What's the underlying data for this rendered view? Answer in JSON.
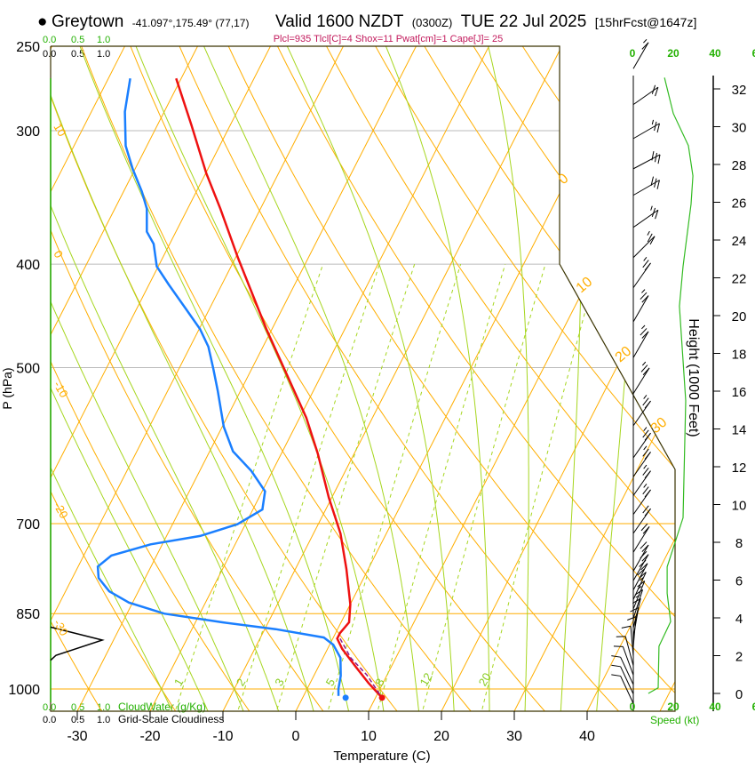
{
  "header": {
    "bullet": "●",
    "location": "Greytown",
    "coords": "-41.097°,175.49° (77,17)",
    "valid": "Valid 1600 NZDT",
    "utc": "(0300Z)",
    "date": "TUE 22 Jul 2025",
    "forecast": "[15hrFcst@1647z]"
  },
  "indices": "Plcl=935 Tlcl[C]=4 Shox=11 Pwat[cm]=1 Cape[J]= 25",
  "cloud": {
    "scale_ticks": [
      "0.0",
      "0.5",
      "1.0"
    ],
    "cloudwater_label": "CloudWater (g/Kg)",
    "cloudiness_label": "Grid-Scale Cloudiness",
    "cloudiness_profile": [
      {
        "p": 875,
        "v": 0.0
      },
      {
        "p": 900,
        "v": 0.97
      },
      {
        "p": 930,
        "v": 0.1
      },
      {
        "p": 940,
        "v": 0.0
      }
    ]
  },
  "chart_data": {
    "type": "line",
    "subtype": "skew-T log-P",
    "xlabel": "Temperature (C)",
    "ylabel": "P (hPa)",
    "x_ticks": [
      -30,
      -20,
      -10,
      0,
      10,
      20,
      30,
      40
    ],
    "y_ticks": [
      250,
      300,
      400,
      500,
      700,
      850,
      1000
    ],
    "xlim": [
      -34,
      45
    ],
    "ylim": [
      1050,
      250
    ],
    "isotherm_labels": [
      "0",
      "10",
      "20",
      "30"
    ],
    "dry_adiabat_labels": [
      "10",
      "0",
      "-10",
      "-20",
      "-30"
    ],
    "mixing_ratio_lines": [
      1,
      2,
      3,
      5,
      8,
      12,
      20
    ],
    "mixing_ratio_labels": [
      "1",
      "2",
      "3",
      "5",
      "8",
      "12",
      "20"
    ],
    "series": [
      {
        "name": "Temperature",
        "color": "#ee1111",
        "points": [
          [
            268,
            -60.7
          ],
          [
            296,
            -55.4
          ],
          [
            329,
            -49.9
          ],
          [
            355,
            -45.5
          ],
          [
            395,
            -39.6
          ],
          [
            460,
            -30.8
          ],
          [
            500,
            -25.7
          ],
          [
            557,
            -19.1
          ],
          [
            602,
            -15.0
          ],
          [
            662,
            -10.4
          ],
          [
            715,
            -6.3
          ],
          [
            772,
            -3.0
          ],
          [
            833,
            0.0
          ],
          [
            866,
            1.1
          ],
          [
            886,
            0.6
          ],
          [
            897,
            0.6
          ],
          [
            917,
            2.0
          ],
          [
            953,
            5.1
          ],
          [
            987,
            8.0
          ],
          [
            1019,
            10.9
          ]
        ]
      },
      {
        "name": "Dewpoint",
        "color": "#1a7fff",
        "points": [
          [
            268,
            -67.0
          ],
          [
            288,
            -65.4
          ],
          [
            310,
            -62.9
          ],
          [
            326,
            -60.3
          ],
          [
            342,
            -57.5
          ],
          [
            355,
            -55.6
          ],
          [
            373,
            -54.0
          ],
          [
            383,
            -52.2
          ],
          [
            402,
            -50.2
          ],
          [
            418,
            -47.3
          ],
          [
            439,
            -43.5
          ],
          [
            460,
            -39.9
          ],
          [
            478,
            -37.5
          ],
          [
            501,
            -35.3
          ],
          [
            526,
            -33.1
          ],
          [
            568,
            -29.8
          ],
          [
            599,
            -26.8
          ],
          [
            625,
            -22.9
          ],
          [
            653,
            -19.6
          ],
          [
            679,
            -18.7
          ],
          [
            701,
            -21.1
          ],
          [
            719,
            -25.4
          ],
          [
            732,
            -31.6
          ],
          [
            750,
            -36.2
          ],
          [
            768,
            -37.3
          ],
          [
            787,
            -36.4
          ],
          [
            810,
            -34.0
          ],
          [
            830,
            -30.5
          ],
          [
            850,
            -24.9
          ],
          [
            866,
            -16.3
          ],
          [
            879,
            -8.5
          ],
          [
            895,
            -1.3
          ],
          [
            909,
            0.5
          ],
          [
            935,
            2.4
          ],
          [
            972,
            3.7
          ],
          [
            1000,
            4.3
          ],
          [
            1015,
            4.8
          ]
        ]
      },
      {
        "name": "Parcel",
        "color": "#8a1a8a",
        "points": [
          [
            897,
            1.0
          ],
          [
            935,
            3.8
          ],
          [
            970,
            7.2
          ],
          [
            1019,
            10.9
          ]
        ]
      }
    ],
    "surface": {
      "temperature": 10.9,
      "dewpoint": 5.9,
      "pressure": 1019
    },
    "wind": {
      "height_label": "Height (1000 Feet)",
      "speed_label": "Speed (kt)",
      "height_ticks": [
        0,
        2,
        4,
        6,
        8,
        10,
        12,
        14,
        16,
        18,
        20,
        22,
        24,
        26,
        28,
        30,
        32
      ],
      "speed_ticks": [
        "0",
        "20",
        "40",
        "6"
      ],
      "speed_profile": [
        [
          0.0,
          7.8
        ],
        [
          0.3,
          12.6
        ],
        [
          2.5,
          13.0
        ],
        [
          3.8,
          18.7
        ],
        [
          5.3,
          17.0
        ],
        [
          6.7,
          17.0
        ],
        [
          9.3,
          24.8
        ],
        [
          15.5,
          26.1
        ],
        [
          20.5,
          23.0
        ],
        [
          22.6,
          24.8
        ],
        [
          25.9,
          28.7
        ],
        [
          27.4,
          29.6
        ],
        [
          29.0,
          27.4
        ],
        [
          30.7,
          20.0
        ],
        [
          32.6,
          15.7
        ]
      ],
      "barbs": [
        {
          "h": 32.6,
          "dir": 150,
          "kt": 15
        },
        {
          "h": 30.7,
          "dir": 125,
          "kt": 20
        },
        {
          "h": 28.9,
          "dir": 120,
          "kt": 25
        },
        {
          "h": 27.3,
          "dir": 118,
          "kt": 30
        },
        {
          "h": 25.9,
          "dir": 120,
          "kt": 30
        },
        {
          "h": 24.2,
          "dir": 125,
          "kt": 25
        },
        {
          "h": 22.6,
          "dir": 135,
          "kt": 25
        },
        {
          "h": 21.0,
          "dir": 145,
          "kt": 25
        },
        {
          "h": 19.2,
          "dir": 150,
          "kt": 25
        },
        {
          "h": 17.3,
          "dir": 150,
          "kt": 25
        },
        {
          "h": 15.4,
          "dir": 148,
          "kt": 25
        },
        {
          "h": 13.7,
          "dir": 145,
          "kt": 25
        },
        {
          "h": 12.0,
          "dir": 145,
          "kt": 25
        },
        {
          "h": 11.0,
          "dir": 145,
          "kt": 25
        },
        {
          "h": 10.0,
          "dir": 145,
          "kt": 25
        },
        {
          "h": 9.0,
          "dir": 145,
          "kt": 25
        },
        {
          "h": 8.0,
          "dir": 145,
          "kt": 20
        },
        {
          "h": 7.0,
          "dir": 148,
          "kt": 20
        },
        {
          "h": 6.0,
          "dir": 150,
          "kt": 20
        },
        {
          "h": 5.5,
          "dir": 150,
          "kt": 20
        },
        {
          "h": 5.0,
          "dir": 152,
          "kt": 20
        },
        {
          "h": 4.5,
          "dir": 155,
          "kt": 20
        },
        {
          "h": 4.0,
          "dir": 158,
          "kt": 15
        },
        {
          "h": 3.5,
          "dir": 162,
          "kt": 15
        },
        {
          "h": 3.0,
          "dir": 166,
          "kt": 15
        },
        {
          "h": 2.5,
          "dir": 170,
          "kt": 10
        },
        {
          "h": 2.0,
          "dir": 175,
          "kt": 10
        },
        {
          "h": 1.5,
          "dir": 185,
          "kt": 10
        },
        {
          "h": 1.0,
          "dir": 195,
          "kt": 10
        },
        {
          "h": 0.5,
          "dir": 200,
          "kt": 10
        },
        {
          "h": 0.0,
          "dir": 205,
          "kt": 10
        },
        {
          "h": -0.5,
          "dir": 205,
          "kt": 10
        },
        {
          "h": -1.0,
          "dir": 205,
          "kt": 10
        }
      ]
    }
  }
}
